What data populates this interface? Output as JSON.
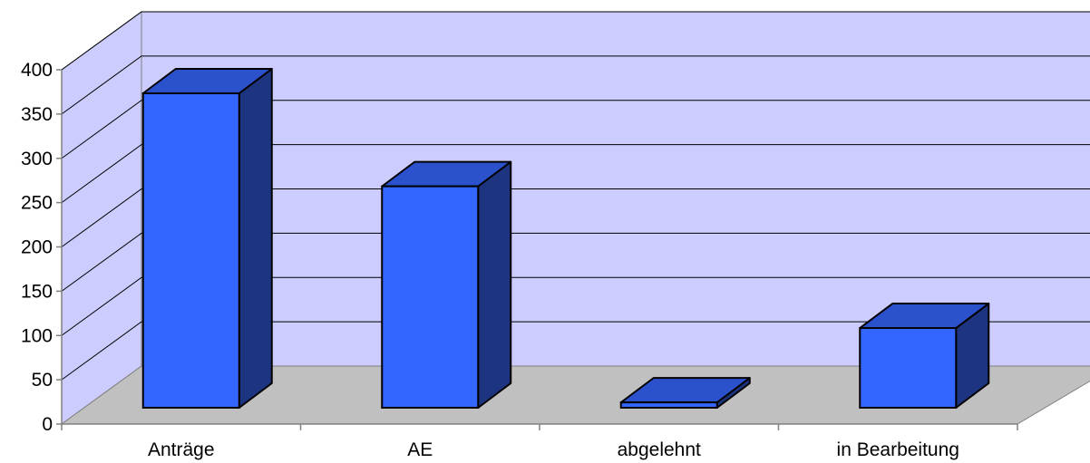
{
  "chart_data": {
    "type": "bar",
    "style": "3d-column",
    "categories": [
      "Anträge",
      "AE",
      "abgelehnt",
      "in Bearbeitung"
    ],
    "values": [
      355,
      250,
      6,
      90
    ],
    "ylim": [
      0,
      400
    ],
    "yticks": [
      0,
      50,
      100,
      150,
      200,
      250,
      300,
      350,
      400
    ],
    "ytick_labels": [
      "0",
      "50",
      "100",
      "150",
      "200",
      "250",
      "300",
      "350",
      "400"
    ],
    "grid": true,
    "legend": "none",
    "colors": {
      "bar_front": "#3366ff",
      "bar_top": "#2b52cc",
      "bar_side": "#1d3580",
      "back_wall": "#ccccff",
      "floor": "#c0c0c0",
      "grid": "#000000"
    }
  }
}
